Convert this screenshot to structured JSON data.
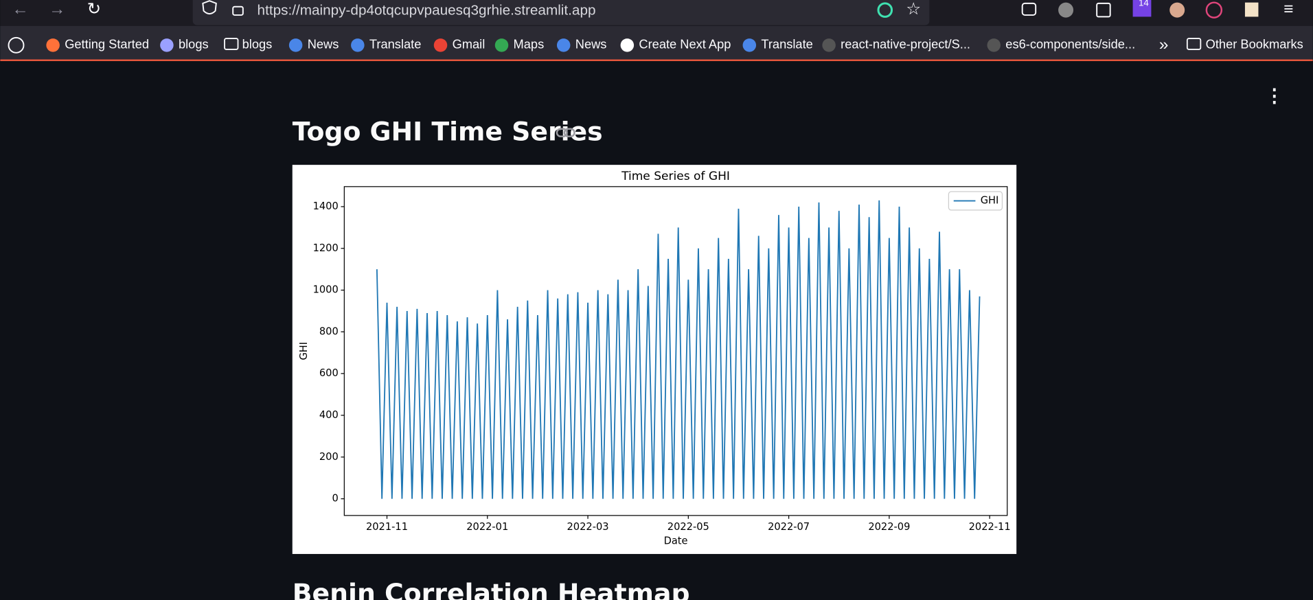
{
  "browser": {
    "url": "https://mainpy-dp4otqcupvpauesq3grhie.streamlit.app",
    "badge": "14",
    "bookmarks": [
      "Getting Started",
      "blogs",
      "blogs",
      "News",
      "Translate",
      "Gmail",
      "Maps",
      "News",
      "Create Next App",
      "Translate",
      "react-native-project/S...",
      "es6-components/side..."
    ],
    "other_bookmarks": "Other Bookmarks"
  },
  "page": {
    "heading": "Togo GHI Time Series",
    "next_heading": "Benin Correlation Heatmap"
  },
  "chart_data": {
    "type": "line",
    "title": "Time Series of GHI",
    "xlabel": "Date",
    "ylabel": "GHI",
    "x": [
      0.8,
      0.9,
      1,
      1.1,
      1.2,
      1.3,
      1.4,
      1.5,
      1.6,
      1.7,
      1.8,
      1.9,
      2,
      2.1,
      2.2,
      2.3,
      2.4,
      2.5,
      2.6,
      2.7,
      2.8,
      2.9,
      3,
      3.1,
      3.2,
      3.3,
      3.4,
      3.5,
      3.6,
      3.7,
      3.8,
      3.9,
      4,
      4.1,
      4.2,
      4.3,
      4.4,
      4.5,
      4.6,
      4.7,
      4.8,
      4.9,
      5,
      5.1,
      5.2,
      5.3,
      5.4,
      5.5,
      5.6,
      5.7,
      5.8,
      5.9,
      6,
      6.1,
      6.2,
      6.3,
      6.4,
      6.5,
      6.6,
      6.7,
      6.8,
      6.9,
      7,
      7.1,
      7.2,
      7.3,
      7.4,
      7.5,
      7.6,
      7.7,
      7.8,
      7.9,
      8,
      8.1,
      8.2,
      8.3,
      8.4,
      8.5,
      8.6,
      8.7,
      8.8,
      8.9,
      9,
      9.1,
      9.2,
      9.3,
      9.4,
      9.5,
      9.6,
      9.7,
      9.8,
      9.9,
      10,
      10.1,
      10.2,
      10.3,
      10.4,
      10.5,
      10.6,
      10.7,
      10.8,
      10.9,
      11,
      11.1,
      11.2,
      11.3,
      11.4,
      11.5,
      11.6,
      11.7,
      11.8,
      11.9,
      12,
      12.1,
      12.2,
      12.3,
      12.4,
      12.5,
      12.6,
      12.7,
      12.8
    ],
    "series": [
      {
        "name": "GHI",
        "color": "#1f77b4",
        "values": [
          1100,
          0,
          940,
          0,
          920,
          0,
          900,
          0,
          910,
          0,
          890,
          0,
          900,
          0,
          880,
          0,
          850,
          0,
          870,
          0,
          840,
          0,
          880,
          0,
          1000,
          0,
          860,
          0,
          920,
          0,
          950,
          0,
          880,
          0,
          1000,
          0,
          960,
          0,
          980,
          0,
          990,
          0,
          940,
          0,
          1000,
          0,
          980,
          0,
          1050,
          0,
          1000,
          0,
          1100,
          0,
          1020,
          0,
          1270,
          0,
          1150,
          0,
          1300,
          0,
          1050,
          0,
          1200,
          0,
          1100,
          0,
          1250,
          0,
          1150,
          0,
          1390,
          0,
          1100,
          0,
          1260,
          0,
          1200,
          0,
          1360,
          0,
          1300,
          0,
          1400,
          0,
          1250,
          0,
          1420,
          0,
          1300,
          0,
          1380,
          0,
          1200,
          0,
          1410,
          0,
          1350,
          0,
          1430,
          0,
          1250,
          0,
          1400,
          0,
          1300,
          0,
          1200,
          0,
          1150,
          0,
          1280,
          0,
          1100,
          0,
          1100,
          0,
          1000,
          0,
          970
        ]
      }
    ],
    "xlim": [
      0.15,
      13.35
    ],
    "xticks": [
      {
        "value": 1,
        "label": "2021-11"
      },
      {
        "value": 3,
        "label": "2022-01"
      },
      {
        "value": 5,
        "label": "2022-03"
      },
      {
        "value": 7,
        "label": "2022-05"
      },
      {
        "value": 9,
        "label": "2022-07"
      },
      {
        "value": 11,
        "label": "2022-09"
      },
      {
        "value": 13,
        "label": "2022-11"
      }
    ],
    "ylim": [
      -80,
      1496
    ],
    "yticks": [
      0,
      200,
      400,
      600,
      800,
      1000,
      1200,
      1400
    ],
    "legend": "upper right"
  }
}
